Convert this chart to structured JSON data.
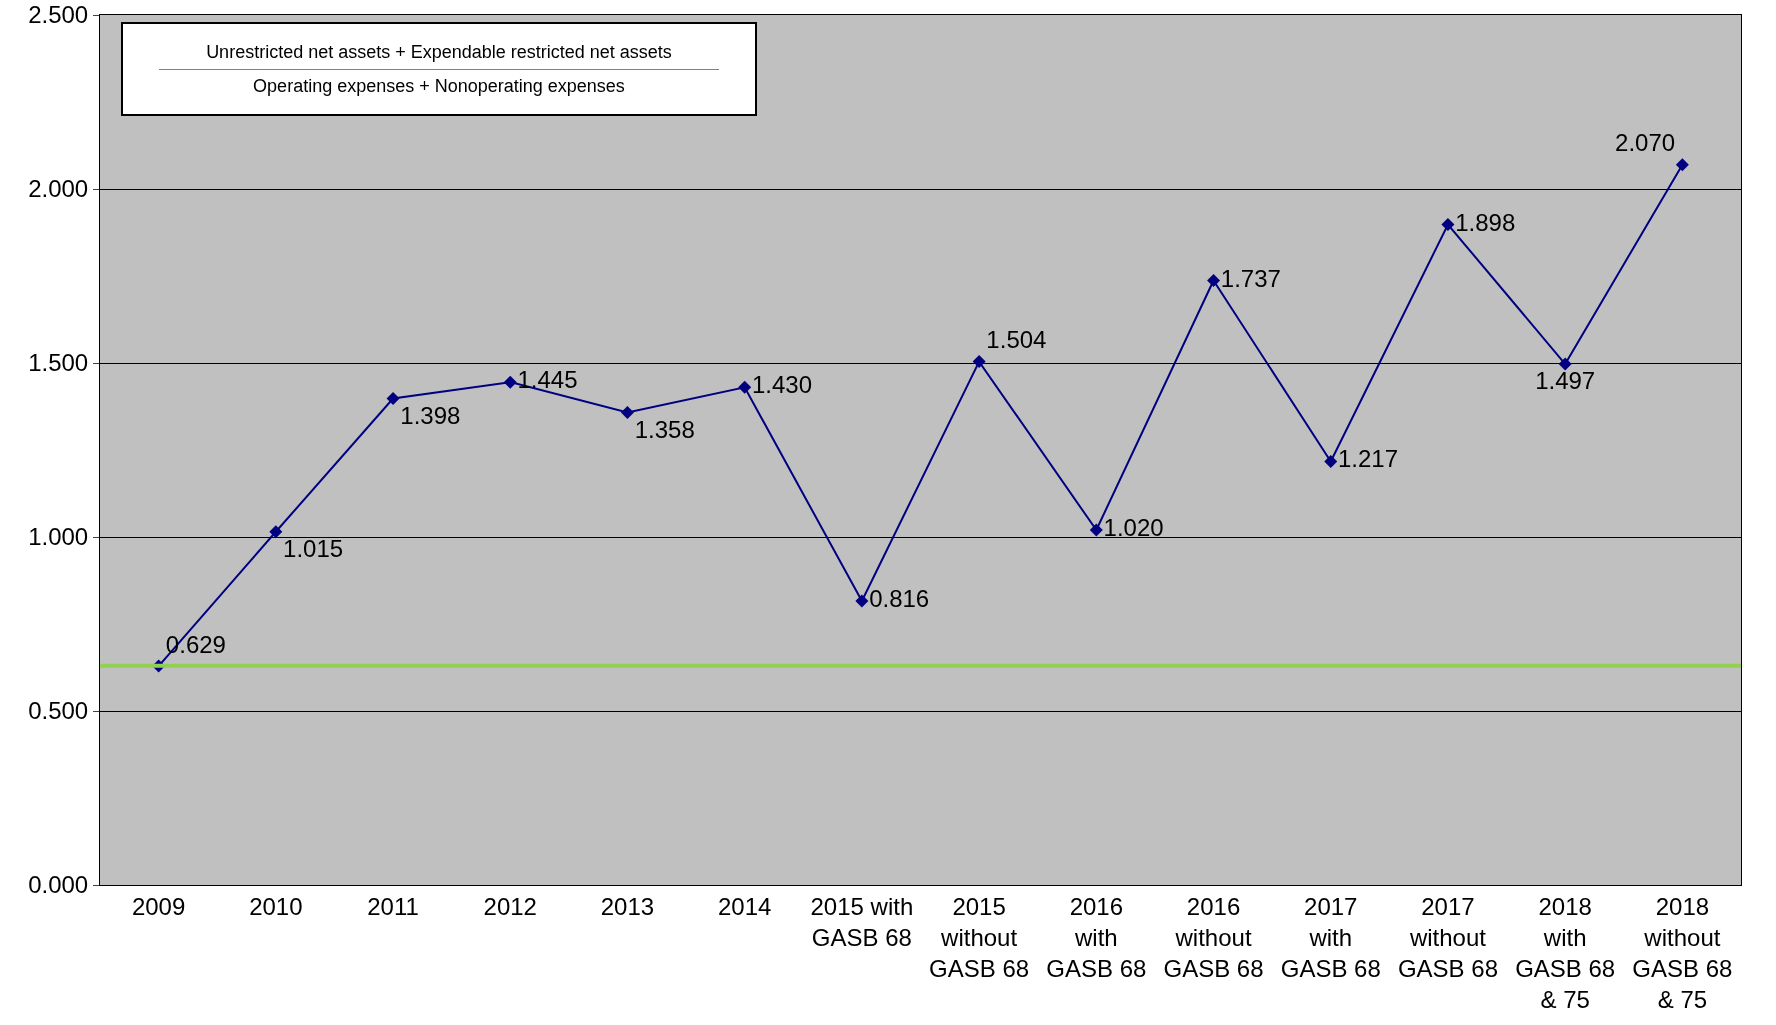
{
  "chart_data": {
    "type": "line",
    "categories": [
      "2009",
      "2010",
      "2011",
      "2012",
      "2013",
      "2014",
      "2015 with\nGASB 68",
      "2015\nwithout\nGASB 68",
      "2016\nwith\nGASB 68",
      "2016\nwithout\nGASB 68",
      "2017\nwith\nGASB 68",
      "2017\nwithout\nGASB 68",
      "2018\nwith\nGASB 68\n& 75",
      "2018\nwithout\nGASB 68\n& 75"
    ],
    "series": [
      {
        "color": "#000080",
        "values": [
          0.629,
          1.015,
          1.398,
          1.445,
          1.358,
          1.43,
          0.816,
          1.504,
          1.02,
          1.737,
          1.217,
          1.898,
          1.497,
          2.07
        ],
        "value_labels": [
          "0.629",
          "1.015",
          "1.398",
          "1.445",
          "1.358",
          "1.430",
          "0.816",
          "1.504",
          "1.020",
          "1.737",
          "1.217",
          "1.898",
          "1.497",
          "2.070"
        ]
      }
    ],
    "ylim": [
      0,
      2.5
    ],
    "yticks": [
      {
        "value": 0,
        "label": "0.000"
      },
      {
        "value": 0.5,
        "label": "0.500"
      },
      {
        "value": 1,
        "label": "1.000"
      },
      {
        "value": 1.5,
        "label": "1.500"
      },
      {
        "value": 2,
        "label": "2.000"
      },
      {
        "value": 2.5,
        "label": "2.500"
      }
    ],
    "grid": "y",
    "marker": "diamond",
    "line_style": "solid",
    "ref_lines": [
      {
        "axis": "y",
        "value": 0.63,
        "color": "#92d050"
      }
    ],
    "annotations": [
      "Unrestricted net assets + Expendable restricted net assets",
      "Operating expenses + Nonoperating expenses"
    ]
  }
}
